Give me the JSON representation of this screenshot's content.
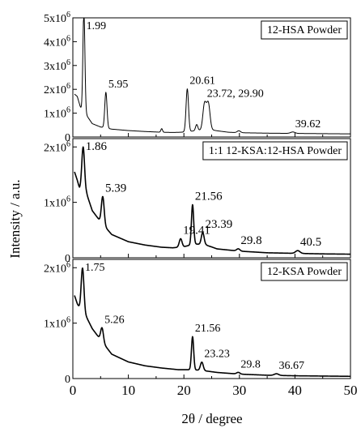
{
  "y_label": "Intensity / a.u.",
  "x_label": "2θ / degree",
  "x_ticks": [
    0,
    10,
    20,
    30,
    40,
    50
  ],
  "chart_data": [
    {
      "type": "line",
      "title": "12-HSA Powder",
      "xlim": [
        0,
        50
      ],
      "ylim": [
        0,
        5000000
      ],
      "yticks": [
        {
          "v": 0,
          "t": "0"
        },
        {
          "v": 1000000,
          "b": "1x10",
          "e": "6"
        },
        {
          "v": 2000000,
          "b": "2x10",
          "e": "6"
        },
        {
          "v": 3000000,
          "b": "3x10",
          "e": "6"
        },
        {
          "v": 4000000,
          "b": "4x10",
          "e": "6"
        },
        {
          "v": 5000000,
          "b": "5x10",
          "e": "6"
        }
      ],
      "baseline": [
        [
          0.3,
          1800000
        ],
        [
          0.8,
          1700000
        ],
        [
          1.3,
          1300000
        ],
        [
          1.6,
          1100000
        ],
        [
          2.5,
          900000
        ],
        [
          3.5,
          560000
        ],
        [
          5,
          420000
        ],
        [
          7,
          330000
        ],
        [
          10,
          270000
        ],
        [
          13,
          230000
        ],
        [
          16,
          200000
        ],
        [
          18,
          190000
        ],
        [
          19.5,
          200000
        ],
        [
          21,
          230000
        ],
        [
          22.5,
          280000
        ],
        [
          25,
          300000
        ],
        [
          26,
          260000
        ],
        [
          28,
          200000
        ],
        [
          30,
          180000
        ],
        [
          35,
          160000
        ],
        [
          40,
          150000
        ],
        [
          45,
          140000
        ],
        [
          50,
          130000
        ]
      ],
      "peaks": [
        [
          1.99,
          4300000,
          0.18
        ],
        [
          5.95,
          1500000,
          0.2
        ],
        [
          16.0,
          150000,
          0.15
        ],
        [
          20.61,
          1800000,
          0.22
        ],
        [
          22.3,
          250000,
          0.2
        ],
        [
          23.72,
          1100000,
          0.3
        ],
        [
          24.4,
          1100000,
          0.3
        ],
        [
          29.9,
          80000,
          0.3
        ],
        [
          39.62,
          60000,
          0.4
        ]
      ],
      "peak_labels": [
        {
          "x": 1.99,
          "text": "1.99"
        },
        {
          "x": 5.95,
          "text": "5.95"
        },
        {
          "x": 20.61,
          "text": "20.61"
        },
        {
          "x": 23.72,
          "text": "23.72, 29.90"
        },
        {
          "x": 39.62,
          "text": "39.62"
        }
      ]
    },
    {
      "type": "line",
      "title": "1:1 12-KSA:12-HSA Powder",
      "xlim": [
        0,
        50
      ],
      "ylim": [
        0,
        2150000
      ],
      "yticks": [
        {
          "v": 0,
          "t": "0"
        },
        {
          "v": 1000000,
          "b": "1x10",
          "e": "6"
        },
        {
          "v": 2000000,
          "b": "2x10",
          "e": "6"
        }
      ],
      "baseline": [
        [
          0.3,
          1550000
        ],
        [
          0.8,
          1400000
        ],
        [
          1.2,
          1250000
        ],
        [
          2.5,
          1150000
        ],
        [
          3.5,
          850000
        ],
        [
          5,
          650000
        ],
        [
          7,
          420000
        ],
        [
          10,
          290000
        ],
        [
          13,
          230000
        ],
        [
          16,
          190000
        ],
        [
          18,
          180000
        ],
        [
          20,
          200000
        ],
        [
          22,
          250000
        ],
        [
          24,
          230000
        ],
        [
          26,
          160000
        ],
        [
          30,
          120000
        ],
        [
          35,
          90000
        ],
        [
          40,
          80000
        ],
        [
          45,
          70000
        ],
        [
          50,
          65000
        ]
      ],
      "peaks": [
        [
          1.86,
          800000,
          0.25
        ],
        [
          5.39,
          500000,
          0.25
        ],
        [
          19.41,
          150000,
          0.25
        ],
        [
          21.56,
          720000,
          0.2
        ],
        [
          23.39,
          220000,
          0.25
        ],
        [
          29.8,
          40000,
          0.3
        ],
        [
          40.5,
          50000,
          0.4
        ]
      ],
      "peak_labels": [
        {
          "x": 1.86,
          "text": "1.86"
        },
        {
          "x": 5.39,
          "text": "5.39"
        },
        {
          "x": 19.41,
          "text": "19.41"
        },
        {
          "x": 21.56,
          "text": "21.56"
        },
        {
          "x": 23.39,
          "text": "23.39"
        },
        {
          "x": 29.8,
          "text": "29.8"
        },
        {
          "x": 40.5,
          "text": "40.5"
        }
      ]
    },
    {
      "type": "line",
      "title": "12-KSA Powder",
      "xlim": [
        0,
        50
      ],
      "ylim": [
        0,
        2150000
      ],
      "yticks": [
        {
          "v": 0,
          "t": "0"
        },
        {
          "v": 1000000,
          "b": "1x10",
          "e": "6"
        },
        {
          "v": 2000000,
          "b": "2x10",
          "e": "6"
        }
      ],
      "baseline": [
        [
          0.3,
          1500000
        ],
        [
          0.8,
          1350000
        ],
        [
          1.3,
          1250000
        ],
        [
          2.5,
          1100000
        ],
        [
          3.5,
          900000
        ],
        [
          5,
          700000
        ],
        [
          7,
          440000
        ],
        [
          10,
          300000
        ],
        [
          13,
          230000
        ],
        [
          16,
          190000
        ],
        [
          19,
          160000
        ],
        [
          21,
          160000
        ],
        [
          23,
          150000
        ],
        [
          26,
          110000
        ],
        [
          30,
          80000
        ],
        [
          35,
          60000
        ],
        [
          40,
          50000
        ],
        [
          45,
          45000
        ],
        [
          50,
          40000
        ]
      ],
      "peaks": [
        [
          1.75,
          800000,
          0.25
        ],
        [
          5.26,
          250000,
          0.25
        ],
        [
          21.56,
          600000,
          0.2
        ],
        [
          23.23,
          150000,
          0.25
        ],
        [
          29.8,
          30000,
          0.3
        ],
        [
          36.67,
          30000,
          0.4
        ]
      ],
      "peak_labels": [
        {
          "x": 1.75,
          "text": "1.75"
        },
        {
          "x": 5.26,
          "text": "5.26"
        },
        {
          "x": 21.56,
          "text": "21.56"
        },
        {
          "x": 23.23,
          "text": "23.23"
        },
        {
          "x": 29.8,
          "text": "29.8"
        },
        {
          "x": 36.67,
          "text": "36.67"
        }
      ]
    }
  ]
}
